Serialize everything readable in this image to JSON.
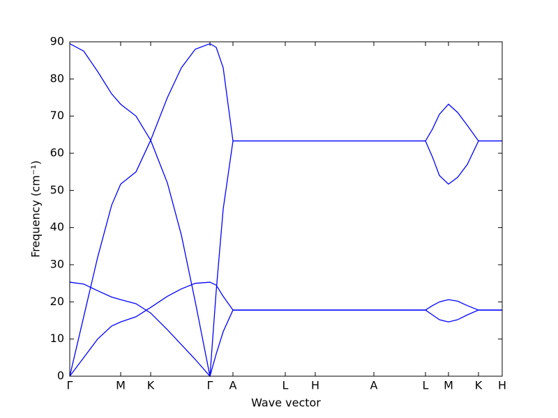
{
  "chart_data": {
    "type": "line",
    "xlabel": "Wave vector",
    "ylabel": "Frequency (cm⁻¹)",
    "xlim": [
      0,
      620
    ],
    "ylim": [
      0,
      90
    ],
    "xticks": [
      {
        "value": 0,
        "label": "Γ"
      },
      {
        "value": 73,
        "label": "M"
      },
      {
        "value": 116,
        "label": "K"
      },
      {
        "value": 201,
        "label": "Γ"
      },
      {
        "value": 234,
        "label": "A"
      },
      {
        "value": 309,
        "label": "L"
      },
      {
        "value": 352,
        "label": "H"
      },
      {
        "value": 436,
        "label": "A"
      },
      {
        "value": 510,
        "label": "L"
      },
      {
        "value": 543,
        "label": "M"
      },
      {
        "value": 586,
        "label": "K"
      },
      {
        "value": 620,
        "label": "H"
      }
    ],
    "yticks": [
      0,
      10,
      20,
      30,
      40,
      50,
      60,
      70,
      80,
      90
    ],
    "x": [
      0,
      20,
      40,
      60,
      73,
      95,
      116,
      140,
      160,
      180,
      201,
      210,
      220,
      234,
      309,
      352,
      436,
      510,
      520,
      530,
      543,
      556,
      570,
      586,
      620
    ],
    "series": [
      {
        "color": "#0000ff",
        "values": [
          89.5,
          87.5,
          82,
          76,
          73.2,
          70,
          63.5,
          52,
          38,
          20,
          0,
          23,
          45,
          63.3,
          63.3,
          63.3,
          63.3,
          63.3,
          66.5,
          70.5,
          73.2,
          71,
          67.5,
          63.3,
          63.3
        ]
      },
      {
        "color": "#0000ff",
        "values": [
          0,
          16,
          32,
          46,
          51.7,
          55,
          63.5,
          75,
          83,
          88,
          89.5,
          88.5,
          83,
          63.3,
          63.3,
          63.3,
          63.3,
          63.3,
          59,
          54,
          51.7,
          53.5,
          57,
          63.3,
          63.3
        ]
      },
      {
        "color": "#0000ff",
        "values": [
          25.3,
          24.8,
          23,
          21.3,
          20.6,
          19.5,
          17,
          12.5,
          8.5,
          4.5,
          0,
          6,
          12,
          17.8,
          17.8,
          17.8,
          17.8,
          17.8,
          19,
          20,
          20.6,
          20.2,
          19,
          17.8,
          17.8
        ]
      },
      {
        "color": "#0000ff",
        "values": [
          0,
          5,
          10,
          13.5,
          14.6,
          16,
          18.5,
          21.5,
          23.5,
          25,
          25.3,
          24.5,
          21.5,
          17.8,
          17.8,
          17.8,
          17.8,
          17.8,
          16.5,
          15.2,
          14.6,
          15.2,
          16.5,
          17.8,
          17.8
        ]
      }
    ]
  }
}
